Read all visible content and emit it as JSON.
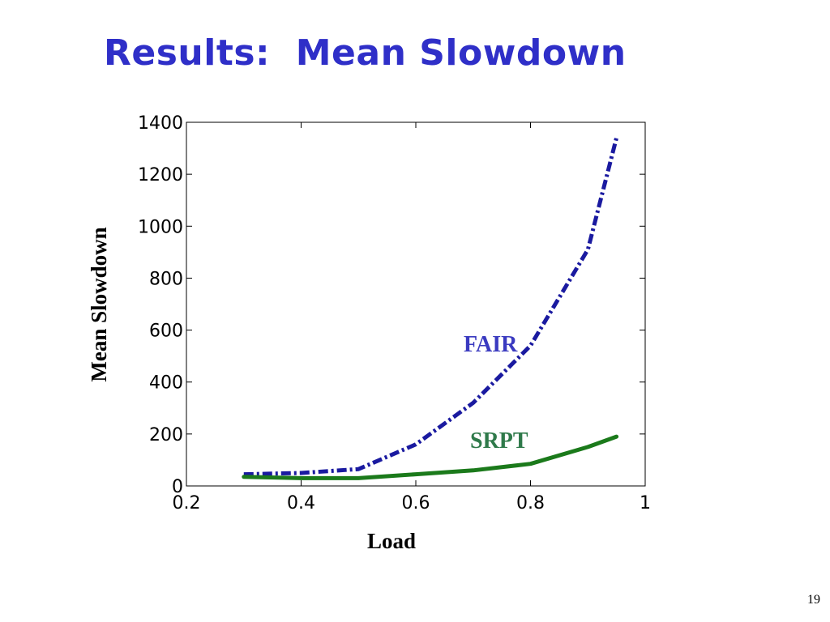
{
  "slide": {
    "title": "Results:  Mean Slowdown",
    "page_number": "19"
  },
  "colors": {
    "title": "#2f2fc8",
    "fair": "#1a1aa0",
    "srpt": "#1b7a1b",
    "fair_label": "#3a3ac0",
    "srpt_label": "#2f7a4a"
  },
  "chart_data": {
    "type": "line",
    "xlabel": "Load",
    "ylabel": "Mean Slowdown",
    "xlim": [
      0.2,
      1
    ],
    "ylim": [
      0,
      1400
    ],
    "xticks": [
      0.2,
      0.4,
      0.6,
      0.8,
      1
    ],
    "xtick_labels": [
      "0.2",
      "0.4",
      "0.6",
      "0.8",
      "1"
    ],
    "yticks": [
      0,
      200,
      400,
      600,
      800,
      1000,
      1200,
      1400
    ],
    "ytick_labels": [
      "0",
      "200",
      "400",
      "600",
      "800",
      "1000",
      "1200",
      "1400"
    ],
    "grid": false,
    "series": [
      {
        "name": "FAIR",
        "style": "dash-dot",
        "x": [
          0.3,
          0.4,
          0.5,
          0.6,
          0.7,
          0.8,
          0.9,
          0.95
        ],
        "y": [
          45,
          50,
          65,
          160,
          320,
          540,
          910,
          1340
        ]
      },
      {
        "name": "SRPT",
        "style": "solid",
        "x": [
          0.3,
          0.4,
          0.5,
          0.6,
          0.7,
          0.8,
          0.9,
          0.95
        ],
        "y": [
          35,
          30,
          30,
          45,
          60,
          85,
          150,
          190
        ]
      }
    ]
  }
}
